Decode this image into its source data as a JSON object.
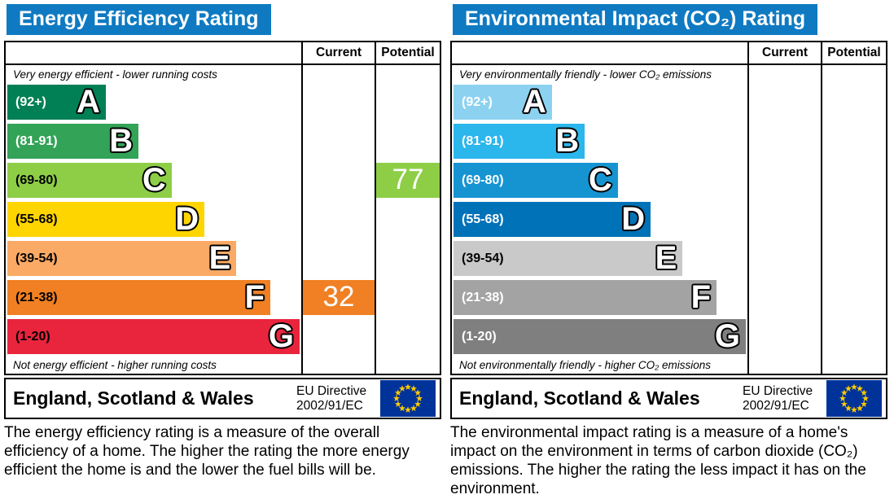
{
  "colors": {
    "header_bg": "#0f7ac2",
    "header_text": "#ffffff",
    "border": "#000000",
    "flag_field": "#003399",
    "flag_stars": "#ffcc00"
  },
  "chart_data": [
    {
      "type": "bar",
      "title": "Energy Efficiency Rating",
      "column_headers": [
        "Current",
        "Potential"
      ],
      "top_note": "Very energy efficient - lower running costs",
      "bottom_note": "Not energy efficient - higher running costs",
      "bands": [
        {
          "letter": "A",
          "range": "(92+)",
          "color": "#008054",
          "label_color": "#ffffff",
          "width_pct": 33.3
        },
        {
          "letter": "B",
          "range": "(81-91)",
          "color": "#33a357",
          "label_color": "#ffffff",
          "width_pct": 44.4
        },
        {
          "letter": "C",
          "range": "(69-80)",
          "color": "#8dce46",
          "label_color": "#000000",
          "width_pct": 55.6
        },
        {
          "letter": "D",
          "range": "(55-68)",
          "color": "#ffd500",
          "label_color": "#000000",
          "width_pct": 66.7
        },
        {
          "letter": "E",
          "range": "(39-54)",
          "color": "#fbaa65",
          "label_color": "#000000",
          "width_pct": 77.5
        },
        {
          "letter": "F",
          "range": "(21-38)",
          "color": "#f08023",
          "label_color": "#000000",
          "width_pct": 89.0
        },
        {
          "letter": "G",
          "range": "(1-20)",
          "color": "#e9243d",
          "label_color": "#000000",
          "width_pct": 98.9
        }
      ],
      "current": {
        "value": 32,
        "band": "F",
        "color": "#f08023"
      },
      "potential": {
        "value": 77,
        "band": "C",
        "color": "#8dce46"
      },
      "footer": {
        "region": "England, Scotland & Wales",
        "directive_line1": "EU Directive",
        "directive_line2": "2002/91/EC",
        "flag": "eu-flag"
      },
      "description": "The energy efficiency rating is a measure of the overall efficiency of a home. The higher the rating the more energy efficient the home is and the lower the fuel bills will be."
    },
    {
      "type": "bar",
      "title": "Environmental Impact (CO₂) Rating",
      "column_headers": [
        "Current",
        "Potential"
      ],
      "top_note": "Very environmentally friendly - lower CO₂ emissions",
      "bottom_note": "Not environmentally friendly - higher CO₂ emissions",
      "bands": [
        {
          "letter": "A",
          "range": "(92+)",
          "color": "#8cd2f0",
          "label_color": "#ffffff",
          "width_pct": 33.3
        },
        {
          "letter": "B",
          "range": "(81-91)",
          "color": "#2bb6ec",
          "label_color": "#ffffff",
          "width_pct": 44.4
        },
        {
          "letter": "C",
          "range": "(69-80)",
          "color": "#1694d2",
          "label_color": "#ffffff",
          "width_pct": 55.6
        },
        {
          "letter": "D",
          "range": "(55-68)",
          "color": "#0072b8",
          "label_color": "#ffffff",
          "width_pct": 66.7
        },
        {
          "letter": "E",
          "range": "(39-54)",
          "color": "#c9c9c9",
          "label_color": "#000000",
          "width_pct": 77.5
        },
        {
          "letter": "F",
          "range": "(21-38)",
          "color": "#a3a3a3",
          "label_color": "#ffffff",
          "width_pct": 89.0
        },
        {
          "letter": "G",
          "range": "(1-20)",
          "color": "#7f7f7f",
          "label_color": "#ffffff",
          "width_pct": 98.9
        }
      ],
      "current": null,
      "potential": null,
      "footer": {
        "region": "England, Scotland & Wales",
        "directive_line1": "EU Directive",
        "directive_line2": "2002/91/EC",
        "flag": "eu-flag"
      },
      "description": "The environmental impact rating is a measure of a home's impact on the environment in terms of carbon dioxide (CO₂) emissions. The higher the rating the less impact it has on the environment."
    }
  ]
}
